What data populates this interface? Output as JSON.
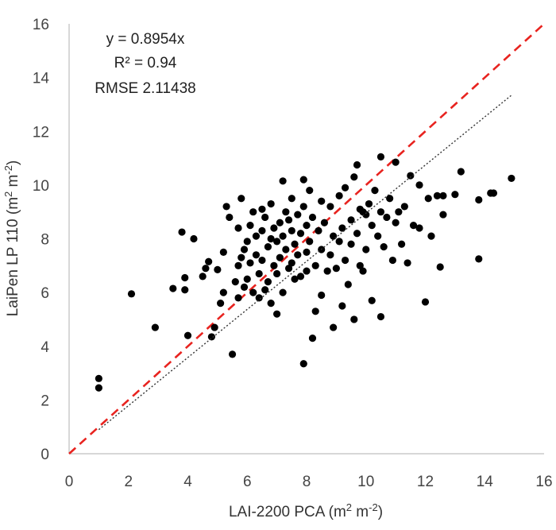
{
  "chart_data": {
    "type": "scatter",
    "title": "",
    "xlabel": {
      "base": "LAI-2200 PCA (m",
      "sup1": "2",
      "mid": " m",
      "sup2": "-2",
      "end": ")"
    },
    "ylabel": {
      "base": "LaiPen LP 110 (m",
      "sup1": "2",
      "mid": " m",
      "sup2": "-2",
      "end": ")"
    },
    "xlim": [
      0,
      16
    ],
    "ylim": [
      0,
      16
    ],
    "x_ticks": [
      0,
      2,
      4,
      6,
      8,
      10,
      12,
      14,
      16
    ],
    "y_ticks": [
      0,
      2,
      4,
      6,
      8,
      10,
      12,
      14,
      16
    ],
    "grid": "none",
    "annotations": [
      "y = 0.8954x",
      "R² = 0.94",
      "RMSE 2.11438"
    ],
    "one_to_one_line": {
      "style": "dashed",
      "color": "#e8231f",
      "x": [
        0,
        16
      ],
      "y": [
        0,
        16
      ]
    },
    "trendline": {
      "style": "dotted",
      "color": "#333333",
      "slope": 0.8954,
      "x": [
        1,
        14.9
      ]
    },
    "series": [
      {
        "name": "observations",
        "color": "#000000",
        "points": [
          [
            1.0,
            2.8
          ],
          [
            1.0,
            2.45
          ],
          [
            2.1,
            5.95
          ],
          [
            2.9,
            4.7
          ],
          [
            3.5,
            6.15
          ],
          [
            3.8,
            8.25
          ],
          [
            3.9,
            6.55
          ],
          [
            3.9,
            6.1
          ],
          [
            4.0,
            4.4
          ],
          [
            4.2,
            8.0
          ],
          [
            4.5,
            6.6
          ],
          [
            4.6,
            6.9
          ],
          [
            4.7,
            7.15
          ],
          [
            4.8,
            4.35
          ],
          [
            4.9,
            4.7
          ],
          [
            5.0,
            6.85
          ],
          [
            5.1,
            5.6
          ],
          [
            5.2,
            6.0
          ],
          [
            5.2,
            7.5
          ],
          [
            5.3,
            9.2
          ],
          [
            5.4,
            8.8
          ],
          [
            5.5,
            3.7
          ],
          [
            5.6,
            6.4
          ],
          [
            5.7,
            8.4
          ],
          [
            5.7,
            5.8
          ],
          [
            5.7,
            7.0
          ],
          [
            5.8,
            9.5
          ],
          [
            5.8,
            7.3
          ],
          [
            5.9,
            6.2
          ],
          [
            5.9,
            7.6
          ],
          [
            6.0,
            6.5
          ],
          [
            6.0,
            7.9
          ],
          [
            6.1,
            8.5
          ],
          [
            6.1,
            7.1
          ],
          [
            6.2,
            9.0
          ],
          [
            6.2,
            6.0
          ],
          [
            6.3,
            7.4
          ],
          [
            6.3,
            8.1
          ],
          [
            6.4,
            6.7
          ],
          [
            6.4,
            5.8
          ],
          [
            6.5,
            8.3
          ],
          [
            6.5,
            7.2
          ],
          [
            6.5,
            9.1
          ],
          [
            6.6,
            6.1
          ],
          [
            6.6,
            8.8
          ],
          [
            6.7,
            7.7
          ],
          [
            6.7,
            6.4
          ],
          [
            6.8,
            8.0
          ],
          [
            6.8,
            5.6
          ],
          [
            6.8,
            9.3
          ],
          [
            6.9,
            7.0
          ],
          [
            6.9,
            8.4
          ],
          [
            7.0,
            6.7
          ],
          [
            7.0,
            7.9
          ],
          [
            7.0,
            5.2
          ],
          [
            7.1,
            8.6
          ],
          [
            7.1,
            7.3
          ],
          [
            7.2,
            10.15
          ],
          [
            7.2,
            6.0
          ],
          [
            7.2,
            8.1
          ],
          [
            7.3,
            9.0
          ],
          [
            7.3,
            7.6
          ],
          [
            7.4,
            6.9
          ],
          [
            7.4,
            8.7
          ],
          [
            7.5,
            7.1
          ],
          [
            7.5,
            9.5
          ],
          [
            7.5,
            8.3
          ],
          [
            7.6,
            6.5
          ],
          [
            7.6,
            7.8
          ],
          [
            7.7,
            8.9
          ],
          [
            7.7,
            7.4
          ],
          [
            7.8,
            6.6
          ],
          [
            7.8,
            8.2
          ],
          [
            7.9,
            10.2
          ],
          [
            7.9,
            9.2
          ],
          [
            7.9,
            3.35
          ],
          [
            8.0,
            7.5
          ],
          [
            8.0,
            8.5
          ],
          [
            8.0,
            6.8
          ],
          [
            8.1,
            9.8
          ],
          [
            8.1,
            7.9
          ],
          [
            8.2,
            4.3
          ],
          [
            8.2,
            8.8
          ],
          [
            8.3,
            5.3
          ],
          [
            8.3,
            7.0
          ],
          [
            8.4,
            8.3
          ],
          [
            8.5,
            5.9
          ],
          [
            8.5,
            9.4
          ],
          [
            8.5,
            7.6
          ],
          [
            8.6,
            8.6
          ],
          [
            8.7,
            6.8
          ],
          [
            8.8,
            9.2
          ],
          [
            8.8,
            7.4
          ],
          [
            8.9,
            4.7
          ],
          [
            8.9,
            8.1
          ],
          [
            9.0,
            6.9
          ],
          [
            9.1,
            9.6
          ],
          [
            9.1,
            7.9
          ],
          [
            9.2,
            5.5
          ],
          [
            9.2,
            8.4
          ],
          [
            9.3,
            7.2
          ],
          [
            9.3,
            9.9
          ],
          [
            9.4,
            6.3
          ],
          [
            9.5,
            8.7
          ],
          [
            9.5,
            7.8
          ],
          [
            9.6,
            10.3
          ],
          [
            9.6,
            5.0
          ],
          [
            9.7,
            10.75
          ],
          [
            9.7,
            8.2
          ],
          [
            9.8,
            9.1
          ],
          [
            9.8,
            7.0
          ],
          [
            9.9,
            9.0
          ],
          [
            9.9,
            6.8
          ],
          [
            10.0,
            8.9
          ],
          [
            10.0,
            7.6
          ],
          [
            10.1,
            9.3
          ],
          [
            10.2,
            8.5
          ],
          [
            10.2,
            5.7
          ],
          [
            10.3,
            9.8
          ],
          [
            10.4,
            8.1
          ],
          [
            10.5,
            11.05
          ],
          [
            10.5,
            5.1
          ],
          [
            10.5,
            9.0
          ],
          [
            10.6,
            7.7
          ],
          [
            10.7,
            8.8
          ],
          [
            10.8,
            9.5
          ],
          [
            10.9,
            7.2
          ],
          [
            11.0,
            10.85
          ],
          [
            11.0,
            8.6
          ],
          [
            11.1,
            9.0
          ],
          [
            11.2,
            7.8
          ],
          [
            11.3,
            9.2
          ],
          [
            11.4,
            7.1
          ],
          [
            11.5,
            10.35
          ],
          [
            11.6,
            8.5
          ],
          [
            11.8,
            10.0
          ],
          [
            11.8,
            8.4
          ],
          [
            12.0,
            5.65
          ],
          [
            12.1,
            9.5
          ],
          [
            12.2,
            8.1
          ],
          [
            12.4,
            9.6
          ],
          [
            12.5,
            6.95
          ],
          [
            12.6,
            8.9
          ],
          [
            12.6,
            9.6
          ],
          [
            13.0,
            9.65
          ],
          [
            13.2,
            10.5
          ],
          [
            13.8,
            9.45
          ],
          [
            13.8,
            7.25
          ],
          [
            14.2,
            9.7
          ],
          [
            14.3,
            9.7
          ],
          [
            14.9,
            10.25
          ]
        ]
      }
    ]
  }
}
